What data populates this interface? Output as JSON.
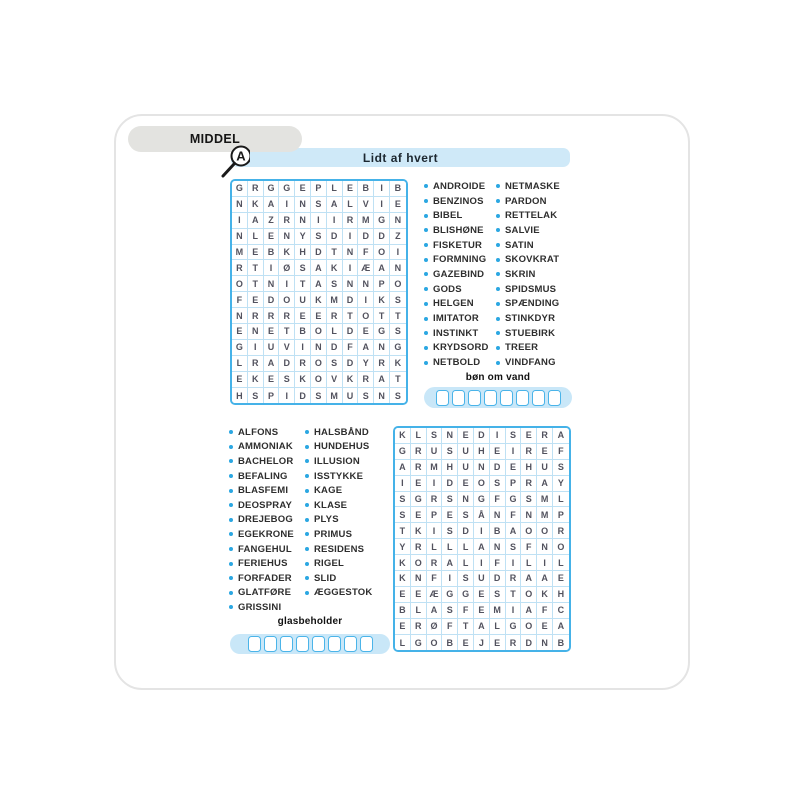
{
  "difficulty_badge": "MIDDEL",
  "magnifier_letter": "A",
  "page_title": "Lidt af hvert",
  "colors": {
    "accent_blue": "#45b2e8",
    "header_blue": "#cfe9f8",
    "pill_blue": "#c9e7f8",
    "badge_gray": "#e3e3e0",
    "grid_line_blue": "#bfe1f4",
    "bullet_blue": "#2ba7e2"
  },
  "puzzle1": {
    "grid_rows": [
      "GRGGEPLEBIB",
      "NKAINSALVIE",
      "IAZRNIIRMGN",
      "NLENYSDIDDZ",
      "MEBKHDTNFOI",
      "RTIØSAKIÆAN",
      "OTNITASNNPO",
      "FEDOUKMDIKS",
      "NRRREERTOTT",
      "ENETBOLDEGS",
      "GIUVINDFANG",
      "LRADROSDYRK",
      "EKESKOVKRAT",
      "HSPIDSMUSNS"
    ],
    "words_col1": [
      "ANDROIDE",
      "BENZINOS",
      "BIBEL",
      "BLISHØNE",
      "FISKETUR",
      "FORMNING",
      "GAZEBIND",
      "GODS",
      "HELGEN",
      "IMITATOR",
      "INSTINKT",
      "KRYDSORD",
      "NETBOLD"
    ],
    "words_col2": [
      "NETMASKE",
      "PARDON",
      "RETTELAK",
      "SALVIE",
      "SATIN",
      "SKOVKRAT",
      "SKRIN",
      "SPIDSMUS",
      "SPÆNDING",
      "STINKDYR",
      "STUEBIRK",
      "TREER",
      "VINDFANG"
    ],
    "clue_label": "bøn om vand",
    "answer_boxes": 8
  },
  "puzzle2": {
    "grid_rows": [
      "KLSNEDISERA",
      "GRUSUHEIREF",
      "ARMHUNDEHUS",
      "IEIDEOSPRAY",
      "SGRSNGFGSML",
      "SEPESÅNFNMP",
      "TKISDIBAOOR",
      "YRLLLANSFNO",
      "KORALIFILIL",
      "KNFISUDRAAE",
      "EEÆGGESTOKH",
      "BLASFEMIAFC",
      "ERØFTALGOEA",
      "LGOBEJERDNB"
    ],
    "words_col1": [
      "ALFONS",
      "AMMONIAK",
      "BACHELOR",
      "BEFALING",
      "BLASFEMI",
      "DEOSPRAY",
      "DREJEBOG",
      "EGEKRONE",
      "FANGEHUL",
      "FERIEHUS",
      "FORFADER",
      "GLATFØRE",
      "GRISSINI"
    ],
    "words_col2": [
      "HALSBÅND",
      "HUNDEHUS",
      "ILLUSION",
      "ISSTYKKE",
      "KAGE",
      "KLASE",
      "PLYS",
      "PRIMUS",
      "RESIDENS",
      "RIGEL",
      "SLID",
      "ÆGGESTOK"
    ],
    "clue_label": "glasbeholder",
    "answer_boxes": 8
  }
}
